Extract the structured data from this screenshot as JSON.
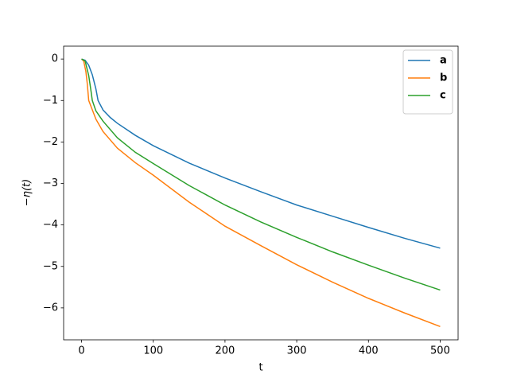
{
  "chart_data": {
    "type": "line",
    "x_label": "t",
    "y_label": "−η(t)",
    "xlim": [
      -25,
      525
    ],
    "ylim": [
      -6.77,
      0.31
    ],
    "xticks": [
      0,
      100,
      200,
      300,
      400,
      500
    ],
    "yticks": [
      0,
      {
        "value": -1,
        "label": "−1"
      },
      {
        "value": -2,
        "label": "−2"
      },
      {
        "value": -3,
        "label": "−3"
      },
      {
        "value": -4,
        "label": "−4"
      },
      {
        "value": -5,
        "label": "−5"
      },
      {
        "value": -6,
        "label": "−6"
      }
    ],
    "legend": "upper right",
    "series": [
      {
        "name": "a",
        "color": "#1f77b4",
        "x": [
          0,
          5,
          10,
          15,
          20,
          23,
          30,
          40,
          50,
          75,
          100,
          150,
          200,
          250,
          300,
          350,
          400,
          450,
          500
        ],
        "values": [
          0,
          -0.03,
          -0.15,
          -0.38,
          -0.72,
          -1,
          -1.23,
          -1.41,
          -1.55,
          -1.84,
          -2.09,
          -2.51,
          -2.87,
          -3.2,
          -3.52,
          -3.79,
          -4.06,
          -4.32,
          -4.56
        ]
      },
      {
        "name": "b",
        "color": "#ff7f0e",
        "x": [
          0,
          3,
          6,
          8,
          10,
          20,
          30,
          50,
          75,
          100,
          150,
          200,
          250,
          300,
          350,
          400,
          450,
          500
        ],
        "values": [
          0,
          -0.05,
          -0.3,
          -0.6,
          -1,
          -1.45,
          -1.75,
          -2.15,
          -2.5,
          -2.8,
          -3.45,
          -4.03,
          -4.5,
          -4.96,
          -5.38,
          -5.77,
          -6.12,
          -6.45
        ]
      },
      {
        "name": "c",
        "color": "#2ca02c",
        "x": [
          0,
          5,
          10,
          13,
          15,
          20,
          30,
          50,
          75,
          100,
          150,
          200,
          250,
          300,
          350,
          400,
          450,
          500
        ],
        "values": [
          0,
          -0.05,
          -0.4,
          -0.75,
          -1,
          -1.25,
          -1.5,
          -1.9,
          -2.25,
          -2.52,
          -3.05,
          -3.52,
          -3.93,
          -4.3,
          -4.65,
          -4.97,
          -5.28,
          -5.57
        ]
      }
    ]
  }
}
